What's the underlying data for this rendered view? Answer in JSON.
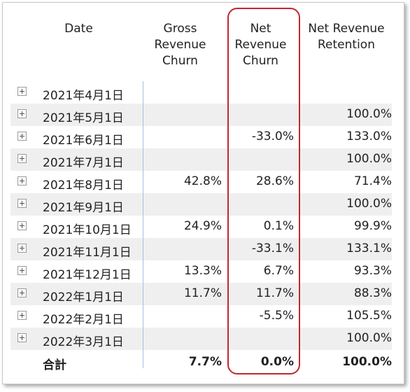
{
  "headers": {
    "date": [
      "Date"
    ],
    "gross_revenue_churn": [
      "Gross",
      "Revenue",
      "Churn"
    ],
    "net_revenue_churn": [
      "Net",
      "Revenue",
      "Churn"
    ],
    "net_revenue_retention": [
      "Net Revenue",
      "Retention"
    ]
  },
  "rows": [
    {
      "date": "2021年4月1日",
      "gross": "",
      "net_churn": "",
      "retention": ""
    },
    {
      "date": "2021年5月1日",
      "gross": "",
      "net_churn": "",
      "retention": "100.0%"
    },
    {
      "date": "2021年6月1日",
      "gross": "",
      "net_churn": "-33.0%",
      "retention": "133.0%"
    },
    {
      "date": "2021年7月1日",
      "gross": "",
      "net_churn": "",
      "retention": "100.0%"
    },
    {
      "date": "2021年8月1日",
      "gross": "42.8%",
      "net_churn": "28.6%",
      "retention": "71.4%"
    },
    {
      "date": "2021年9月1日",
      "gross": "",
      "net_churn": "",
      "retention": "100.0%"
    },
    {
      "date": "2021年10月1日",
      "gross": "24.9%",
      "net_churn": "0.1%",
      "retention": "99.9%"
    },
    {
      "date": "2021年11月1日",
      "gross": "",
      "net_churn": "-33.1%",
      "retention": "133.1%"
    },
    {
      "date": "2021年12月1日",
      "gross": "13.3%",
      "net_churn": "6.7%",
      "retention": "93.3%"
    },
    {
      "date": "2022年1月1日",
      "gross": "11.7%",
      "net_churn": "11.7%",
      "retention": "88.3%"
    },
    {
      "date": "2022年2月1日",
      "gross": "",
      "net_churn": "-5.5%",
      "retention": "105.5%"
    },
    {
      "date": "2022年3月1日",
      "gross": "",
      "net_churn": "",
      "retention": "100.0%"
    }
  ],
  "total": {
    "label": "合計",
    "gross": "7.7%",
    "net_churn": "0.0%",
    "retention": "100.0%"
  },
  "colors": {
    "highlight": "#c0282f",
    "alt_row": "#efefef",
    "divider": "#9fc1de"
  }
}
